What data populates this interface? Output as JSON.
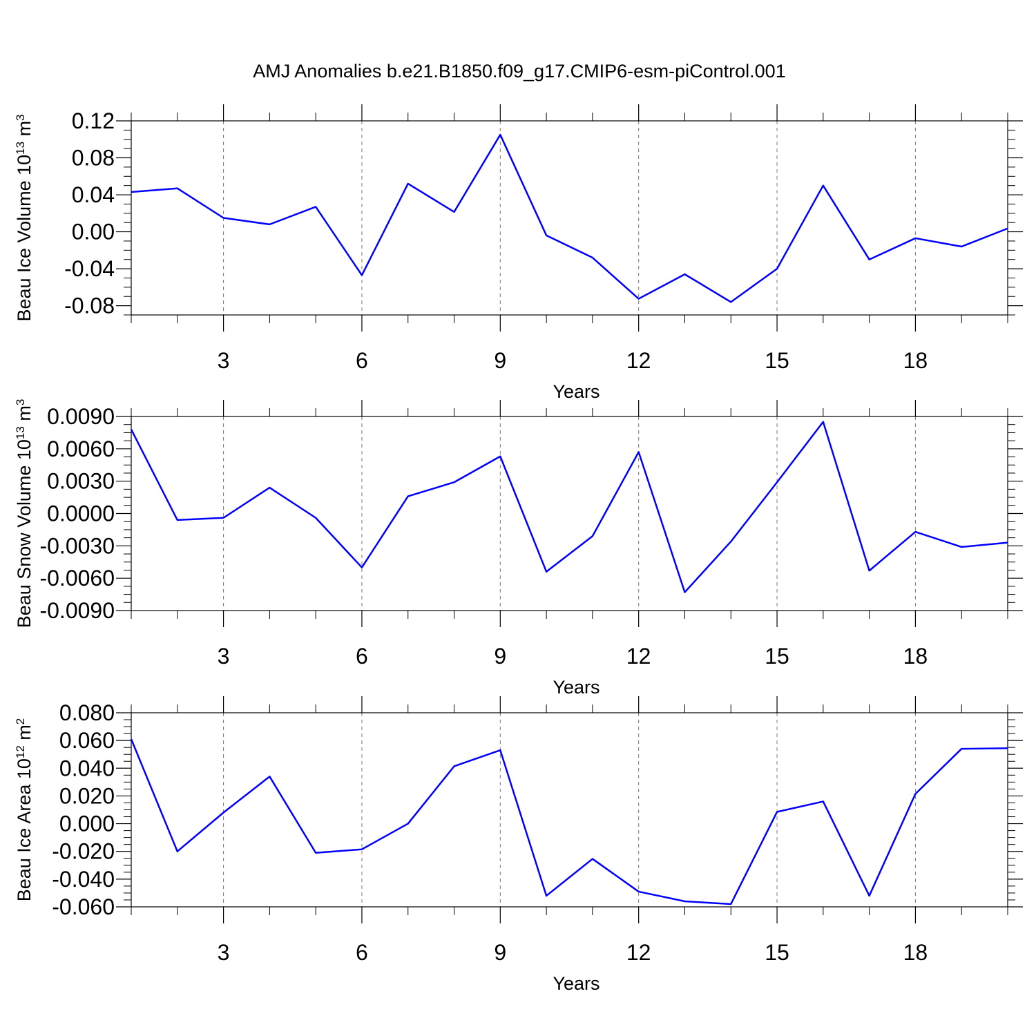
{
  "chart_data": [
    {
      "type": "line",
      "title": "AMJ Anomalies b.e21.B1850.f09_g17.CMIP6-esm-piControl.001",
      "ylabel": [
        "Beau Ice Volume 10",
        "13",
        " m",
        "3"
      ],
      "xlabel": "Years",
      "x": [
        1,
        2,
        3,
        4,
        5,
        6,
        7,
        8,
        9,
        10,
        11,
        12,
        13,
        14,
        15,
        16,
        17,
        18,
        19,
        20
      ],
      "series": [
        {
          "color": "#0000ff",
          "values": [
            0.043,
            0.047,
            0.015,
            0.008,
            0.027,
            -0.047,
            0.052,
            0.0215,
            0.105,
            -0.004,
            -0.028,
            -0.0725,
            -0.046,
            -0.076,
            -0.04,
            0.05,
            -0.03,
            -0.007,
            -0.016,
            0.0036
          ]
        }
      ],
      "xlim": [
        1,
        20
      ],
      "xticks": [
        3,
        6,
        9,
        12,
        15,
        18
      ],
      "ylim": [
        -0.09,
        0.12
      ],
      "yticks": [
        0.12,
        0.08,
        0.04,
        {
          "value": 0,
          "label": "0.00"
        },
        -0.04,
        -0.08
      ],
      "grid": true
    },
    {
      "type": "line",
      "ylabel": [
        "Beau Snow Volume 10",
        "13",
        " m",
        "3"
      ],
      "xlabel": "Years",
      "x": [
        1,
        2,
        3,
        4,
        5,
        6,
        7,
        8,
        9,
        10,
        11,
        12,
        13,
        14,
        15,
        16,
        17,
        18,
        19,
        20
      ],
      "series": [
        {
          "color": "#0000ff",
          "values": [
            0.0078,
            -0.0006,
            -0.0004,
            0.0024,
            -0.0004,
            -0.005,
            0.0016,
            0.0029,
            0.0053,
            -0.0054,
            -0.0021,
            0.0057,
            -0.0073,
            -0.0026,
            0.0029,
            0.0085,
            -0.0053,
            -0.0017,
            -0.0031,
            -0.0027
          ]
        }
      ],
      "xlim": [
        1,
        20
      ],
      "xticks": [
        3,
        6,
        9,
        12,
        15,
        18
      ],
      "ylim": [
        -0.009,
        0.009
      ],
      "yticks": [
        {
          "value": 0.009,
          "label": "0.0090"
        },
        {
          "value": 0.006,
          "label": "0.0060"
        },
        {
          "value": 0.003,
          "label": "0.0030"
        },
        {
          "value": 0,
          "label": "0.0000"
        },
        {
          "value": -0.003,
          "label": "-0.0030"
        },
        {
          "value": -0.006,
          "label": "-0.0060"
        },
        {
          "value": -0.009,
          "label": "-0.0090"
        }
      ],
      "grid": true
    },
    {
      "type": "line",
      "ylabel": [
        "Beau Ice Area 10",
        "12",
        " m",
        "2"
      ],
      "xlabel": "Years",
      "x": [
        1,
        2,
        3,
        4,
        5,
        6,
        7,
        8,
        9,
        10,
        11,
        12,
        13,
        14,
        15,
        16,
        17,
        18,
        19,
        20
      ],
      "series": [
        {
          "color": "#0000ff",
          "values": [
            0.061,
            -0.02,
            0.008,
            0.034,
            -0.021,
            -0.0185,
            0.0,
            0.0414,
            0.053,
            -0.052,
            -0.0254,
            -0.049,
            -0.056,
            -0.058,
            0.0085,
            0.016,
            -0.052,
            0.0215,
            0.054,
            0.0544
          ]
        }
      ],
      "xlim": [
        1,
        20
      ],
      "xticks": [
        3,
        6,
        9,
        12,
        15,
        18
      ],
      "ylim": [
        -0.06,
        0.08
      ],
      "yticks": [
        {
          "value": 0.08,
          "label": "0.080"
        },
        {
          "value": 0.06,
          "label": "0.060"
        },
        {
          "value": 0.04,
          "label": "0.040"
        },
        {
          "value": 0.02,
          "label": "0.020"
        },
        {
          "value": 0,
          "label": "0.000"
        },
        {
          "value": -0.02,
          "label": "-0.020"
        },
        {
          "value": -0.04,
          "label": "-0.040"
        },
        {
          "value": -0.06,
          "label": "-0.060"
        }
      ],
      "grid": true
    }
  ]
}
